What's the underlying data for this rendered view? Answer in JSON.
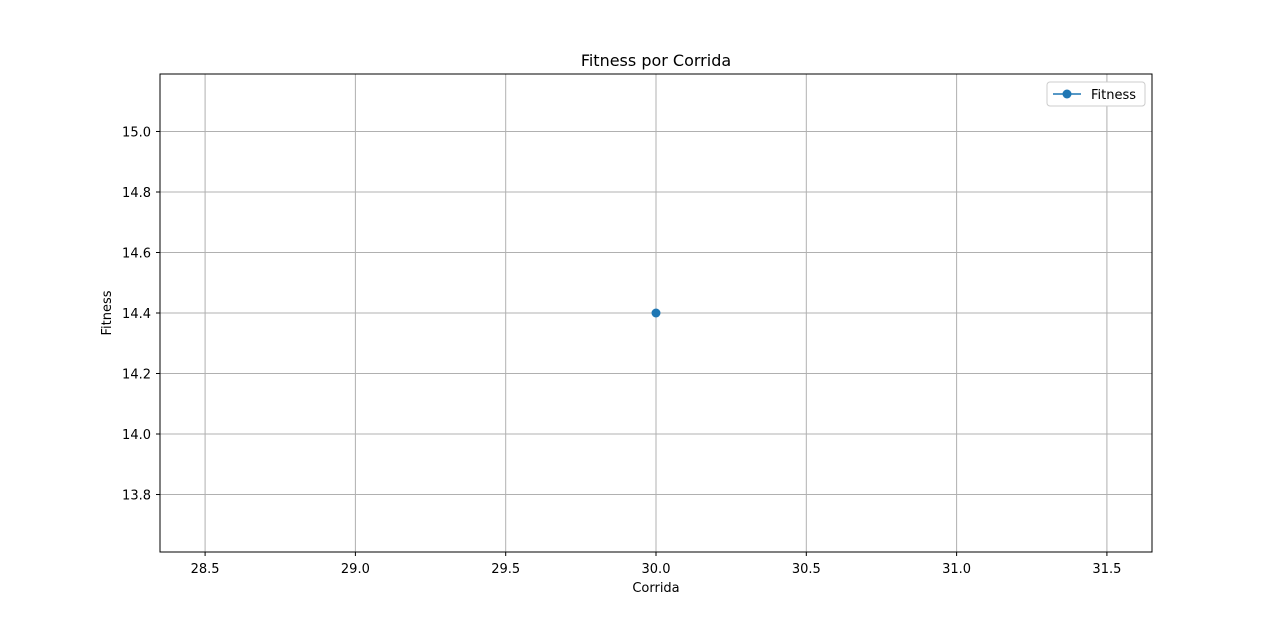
{
  "chart_data": {
    "type": "line",
    "title": "Fitness por Corrida",
    "xlabel": "Corrida",
    "ylabel": "Fitness",
    "xlim": [
      28.35,
      31.65
    ],
    "ylim": [
      13.61,
      15.19
    ],
    "xticks": [
      28.5,
      29.0,
      29.5,
      30.0,
      30.5,
      31.0,
      31.5
    ],
    "xtick_labels": [
      "28.5",
      "29.0",
      "29.5",
      "30.0",
      "30.5",
      "31.0",
      "31.5"
    ],
    "yticks": [
      13.8,
      14.0,
      14.2,
      14.4,
      14.6,
      14.8,
      15.0
    ],
    "ytick_labels": [
      "13.8",
      "14.0",
      "14.2",
      "14.4",
      "14.6",
      "14.8",
      "15.0"
    ],
    "grid": true,
    "legend_position": "top-right",
    "series": [
      {
        "name": "Fitness",
        "color": "#1f77b4",
        "marker": "circle",
        "x": [
          30
        ],
        "y": [
          14.4
        ]
      }
    ]
  }
}
